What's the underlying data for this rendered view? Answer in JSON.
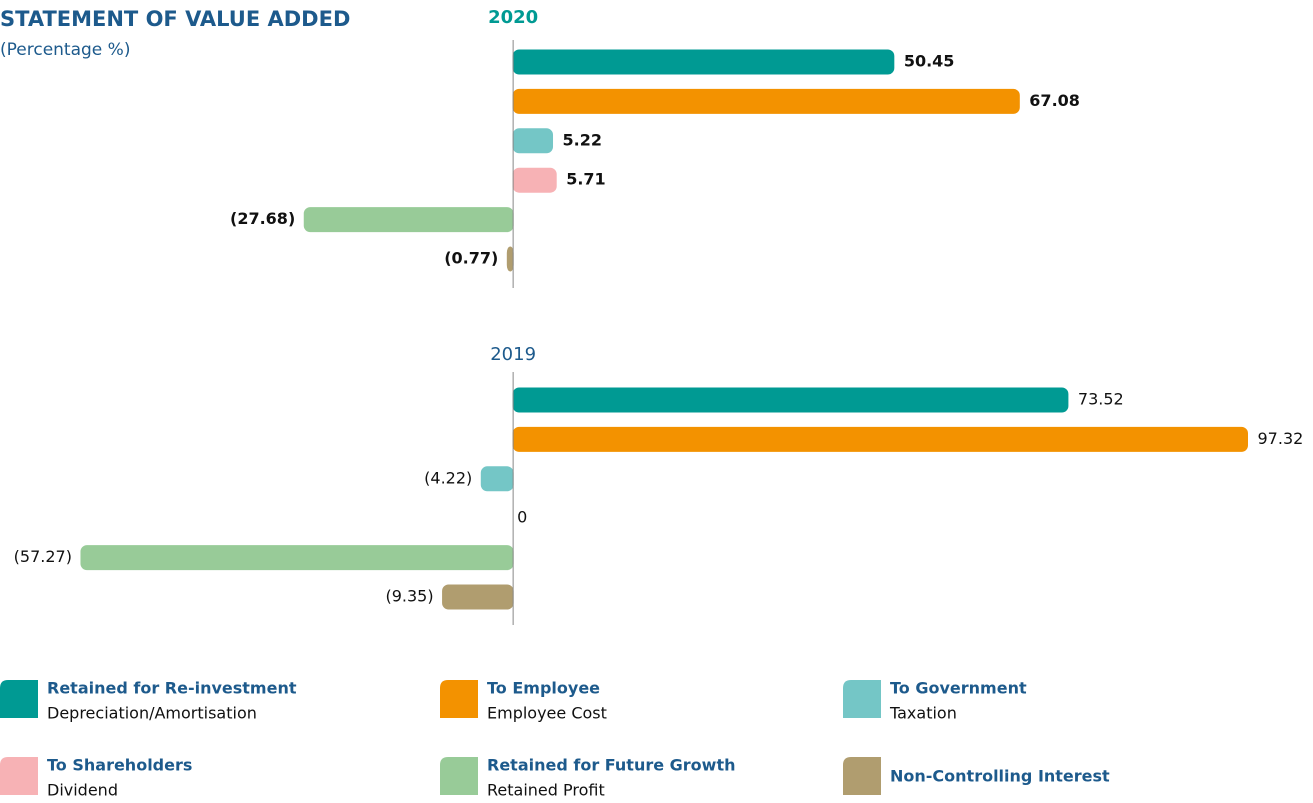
{
  "title": "STATEMENT OF VALUE ADDED",
  "subtitle": "(Percentage %)",
  "legend": [
    {
      "name": "Retained for Re-investment",
      "description": "Depreciation/Amortisation",
      "color": "#009a93"
    },
    {
      "name": "To Employee",
      "description": "Employee Cost",
      "color": "#f39200"
    },
    {
      "name": "To Government",
      "description": "Taxation",
      "color": "#74c6c6"
    },
    {
      "name": "To Shareholders",
      "description": "Dividend",
      "color": "#f7b2b5"
    },
    {
      "name": "Retained for Future Growth",
      "description": "Retained Profit",
      "color": "#98cb98"
    },
    {
      "name": "Non-Controlling Interest",
      "color": "#b09d6f"
    }
  ],
  "chart_data": [
    {
      "type": "bar",
      "orientation": "horizontal",
      "title": "2020",
      "title_color": "#009a93",
      "label_bold": true,
      "values": [
        50.45,
        67.08,
        5.22,
        5.71,
        -27.68,
        -0.77
      ],
      "value_labels": [
        "50.45",
        "67.08",
        "5.22",
        "5.71",
        "(27.68)",
        "(0.77)"
      ],
      "xlim": [
        -68,
        106
      ]
    },
    {
      "type": "bar",
      "orientation": "horizontal",
      "title": "2019",
      "title_color": "#1d5a8c",
      "label_bold": false,
      "values": [
        73.52,
        97.32,
        -4.22,
        0,
        -57.27,
        -9.35
      ],
      "value_labels": [
        "73.52",
        "97.32",
        "(4.22)",
        "0",
        "(57.27)",
        "(9.35)"
      ],
      "xlim": [
        -68,
        106
      ]
    }
  ]
}
